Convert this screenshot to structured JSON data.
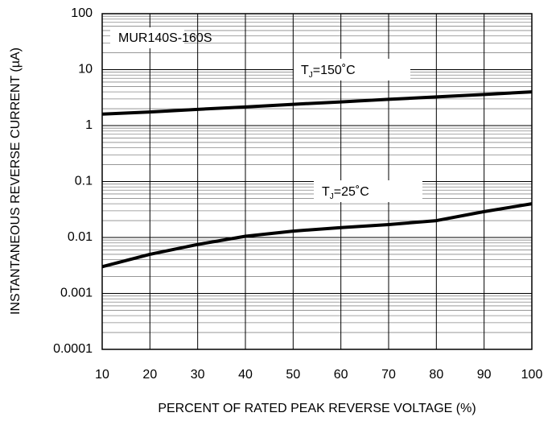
{
  "chart_data": {
    "type": "line",
    "xlabel": "PERCENT OF RATED PEAK REVERSE VOLTAGE (%)",
    "ylabel": "INSTANTANEOUS REVERSE CURRENT (µA)",
    "x": [
      10,
      20,
      30,
      40,
      50,
      60,
      70,
      80,
      90,
      100
    ],
    "series": [
      {
        "color": "#000000",
        "values": [
          1.6,
          1.75,
          1.95,
          2.15,
          2.4,
          2.65,
          2.95,
          3.25,
          3.6,
          4.0
        ]
      },
      {
        "color": "#000000",
        "values": [
          0.003,
          0.005,
          0.0075,
          0.0105,
          0.013,
          0.015,
          0.017,
          0.02,
          0.029,
          0.04
        ]
      }
    ],
    "annotations": [
      {
        "text": "MUR140S-160S"
      },
      {
        "text": "T",
        "subscript": "J",
        "rest": "=150˚C"
      },
      {
        "text": "T",
        "subscript": "J",
        "rest": "=25˚C"
      }
    ],
    "xlim": [
      10,
      100
    ],
    "xticks": [
      10,
      20,
      30,
      40,
      50,
      60,
      70,
      80,
      90,
      100
    ],
    "ylim": [
      0.0001,
      100
    ],
    "yticks": [
      0.0001,
      0.001,
      0.01,
      0.1,
      1,
      10,
      100
    ],
    "yscale": "log",
    "grid": true,
    "minor_grid": true
  }
}
